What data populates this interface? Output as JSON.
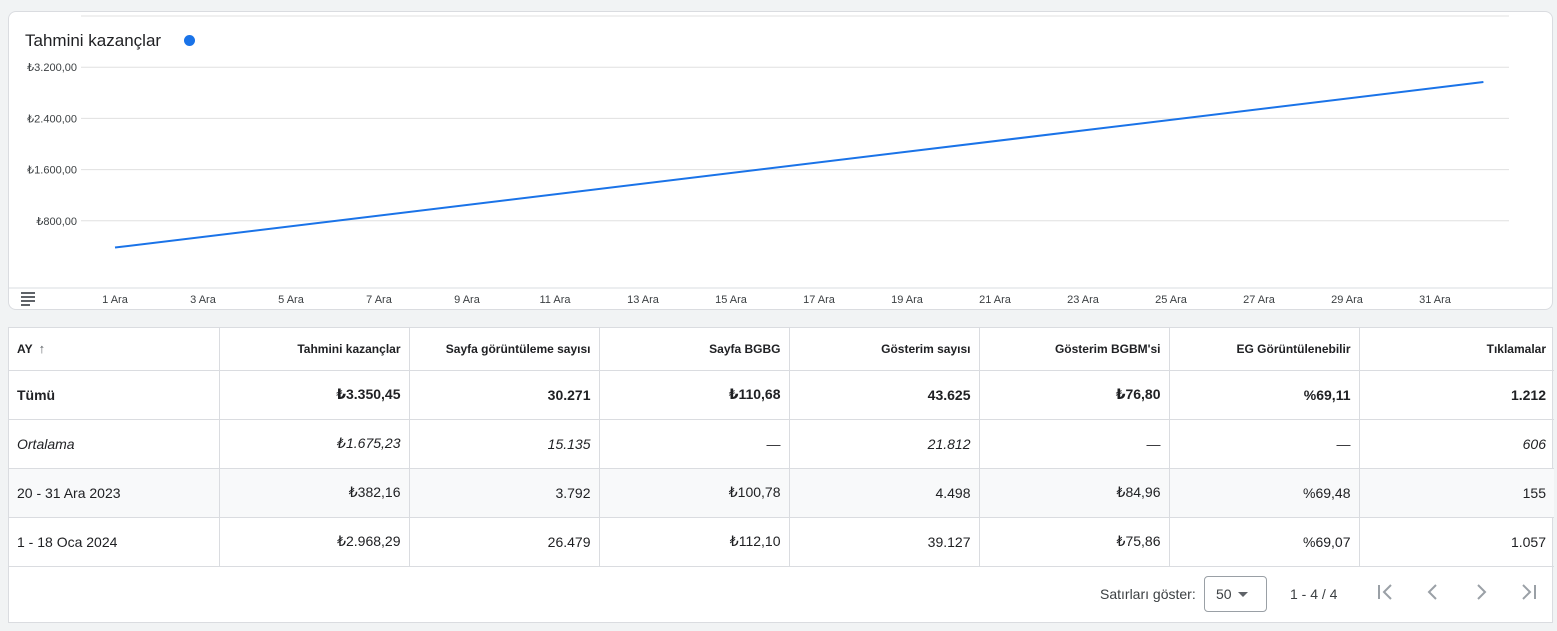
{
  "chart_card": {
    "title": "Tahmini kazançlar",
    "series_color": "#1a73e8",
    "line_color": "#1a73e8",
    "table_toggle_icon": "table-lines-icon"
  },
  "chart_data": {
    "type": "line",
    "title": "Tahmini kazançlar",
    "xlabel": "",
    "ylabel": "",
    "x_tick_labels": [
      "1 Ara",
      "3 Ara",
      "5 Ara",
      "7 Ara",
      "9 Ara",
      "11 Ara",
      "13 Ara",
      "15 Ara",
      "17 Ara",
      "19 Ara",
      "21 Ara",
      "23 Ara",
      "25 Ara",
      "27 Ara",
      "29 Ara",
      "31 Ara"
    ],
    "y_tick_labels": [
      "₺800,00",
      "₺1.600,00",
      "₺2.400,00",
      "₺3.200,00"
    ],
    "y_tick_values": [
      800,
      1600,
      2400,
      3200
    ],
    "ylim": [
      0,
      4000
    ],
    "grid": true,
    "x": [
      "1 Ara",
      "32 Ara"
    ],
    "series": [
      {
        "values": [
          382.16,
          2968.29
        ]
      }
    ]
  },
  "table": {
    "headers": {
      "month": "AY",
      "earnings": "Tahmini kazançlar",
      "pageviews": "Sayfa görüntüleme sayısı",
      "page_rpm": "Sayfa BGBG",
      "impressions": "Gösterim sayısı",
      "impression_rpm": "Gösterim BGBM'si",
      "viewable": "EG Görüntülenebilir",
      "clicks": "Tıklamalar"
    },
    "sort_icon": "arrow-up-icon",
    "rows": {
      "total": {
        "month": "Tümü",
        "earnings": "₺3.350,45",
        "pageviews": "30.271",
        "page_rpm": "₺110,68",
        "impressions": "43.625",
        "impression_rpm": "₺76,80",
        "viewable": "%69,11",
        "clicks": "1.212"
      },
      "average": {
        "month": "Ortalama",
        "earnings": "₺1.675,23",
        "pageviews": "15.135",
        "page_rpm": "—",
        "impressions": "21.812",
        "impression_rpm": "—",
        "viewable": "—",
        "clicks": "606"
      },
      "dec": {
        "month": "20 - 31 Ara 2023",
        "earnings": "₺382,16",
        "pageviews": "3.792",
        "page_rpm": "₺100,78",
        "impressions": "4.498",
        "impression_rpm": "₺84,96",
        "viewable": "%69,48",
        "clicks": "155"
      },
      "jan": {
        "month": "1 - 18 Oca 2024",
        "earnings": "₺2.968,29",
        "pageviews": "26.479",
        "page_rpm": "₺112,10",
        "impressions": "39.127",
        "impression_rpm": "₺75,86",
        "viewable": "%69,07",
        "clicks": "1.057"
      }
    }
  },
  "pager": {
    "rows_label": "Satırları göster:",
    "rows_value": "50",
    "range": "1 - 4 / 4",
    "icons": [
      "first-page-icon",
      "prev-page-icon",
      "next-page-icon",
      "last-page-icon"
    ]
  }
}
